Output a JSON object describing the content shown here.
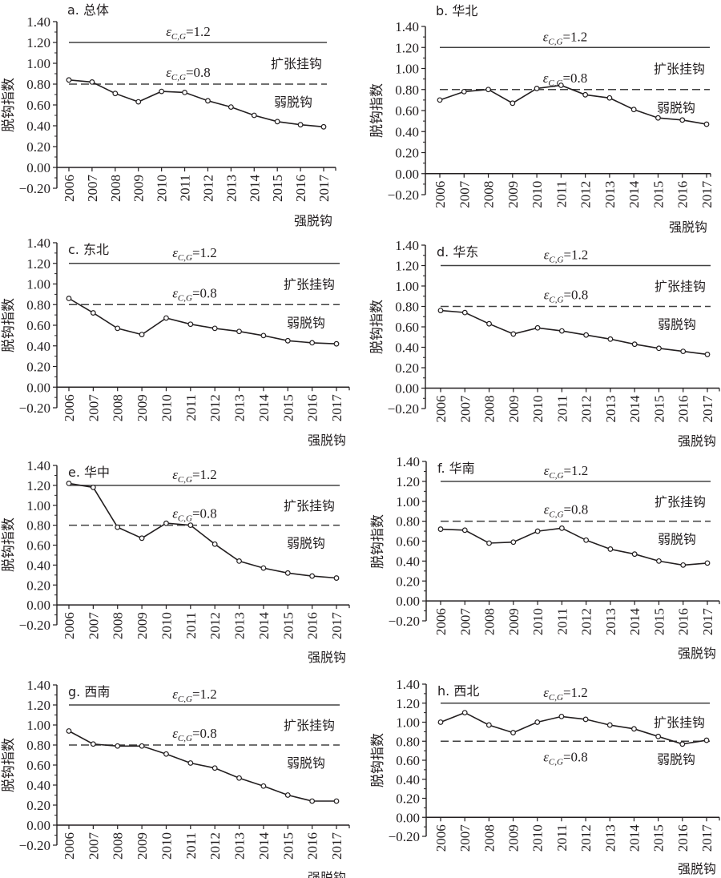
{
  "figure": {
    "y_axis_label": "脱钩指数",
    "thresholds": [
      {
        "value": 1.2,
        "label_symbol": "ε",
        "label_subscript": "C,G",
        "label_value": "=1.2",
        "style": "solid"
      },
      {
        "value": 0.8,
        "label_symbol": "ε",
        "label_subscript": "C,G",
        "label_value": "=0.8",
        "style": "dashed"
      }
    ],
    "zone_labels": {
      "expansive_coupling": "扩张挂钩",
      "weak_decoupling": "弱脱钩",
      "strong_decoupling": "强脱钩"
    },
    "colors": {
      "ink": "#231f20",
      "threshold_line": "#404040",
      "background": "#ffffff"
    }
  },
  "chart_data": [
    {
      "type": "line",
      "title": "a. 总体",
      "xlabel": "",
      "ylabel": "脱钩指数",
      "x": [
        "2006",
        "2007",
        "2008",
        "2009",
        "2010",
        "2011",
        "2012",
        "2013",
        "2014",
        "2015",
        "2016",
        "2017"
      ],
      "yticks": [
        "1.40",
        "1.20",
        "1.00",
        "0.80",
        "0.60",
        "0.40",
        "0.20",
        "0.00",
        "−0.20"
      ],
      "ylim": [
        -0.2,
        1.4
      ],
      "values": [
        0.84,
        0.82,
        0.71,
        0.63,
        0.73,
        0.72,
        0.64,
        0.58,
        0.5,
        0.44,
        0.41,
        0.39
      ],
      "eps08_label_position": "above"
    },
    {
      "type": "line",
      "title": "b. 华北",
      "xlabel": "",
      "ylabel": "脱钩指数",
      "x": [
        "2006",
        "2007",
        "2008",
        "2009",
        "2010",
        "2011",
        "2012",
        "2013",
        "2014",
        "2015",
        "2016",
        "2017"
      ],
      "yticks": [
        "1.40",
        "1.20",
        "1.00",
        "0.80",
        "0.60",
        "0.40",
        "0.20",
        "0.00",
        "−0.20"
      ],
      "ylim": [
        -0.2,
        1.4
      ],
      "values": [
        0.7,
        0.78,
        0.8,
        0.67,
        0.81,
        0.84,
        0.75,
        0.72,
        0.61,
        0.53,
        0.51,
        0.47
      ],
      "eps08_label_position": "above"
    },
    {
      "type": "line",
      "title": "c. 东北",
      "xlabel": "",
      "ylabel": "脱钩指数",
      "x": [
        "2006",
        "2007",
        "2008",
        "2009",
        "2010",
        "2011",
        "2012",
        "2013",
        "2014",
        "2015",
        "2016",
        "2017"
      ],
      "yticks": [
        "1.40",
        "1.20",
        "1.00",
        "0.80",
        "0.60",
        "0.40",
        "0.20",
        "0.00",
        "−0.20"
      ],
      "ylim": [
        -0.2,
        1.4
      ],
      "values": [
        0.86,
        0.72,
        0.57,
        0.51,
        0.67,
        0.61,
        0.57,
        0.54,
        0.5,
        0.45,
        0.43,
        0.42
      ],
      "eps08_label_position": "above"
    },
    {
      "type": "line",
      "title": "d. 华东",
      "xlabel": "",
      "ylabel": "脱钩指数",
      "x": [
        "2006",
        "2007",
        "2008",
        "2009",
        "2010",
        "2011",
        "2012",
        "2013",
        "2014",
        "2015",
        "2016",
        "2017"
      ],
      "yticks": [
        "1.40",
        "1.20",
        "1.00",
        "0.80",
        "0.60",
        "0.40",
        "0.20",
        "0.00",
        "−0.20"
      ],
      "ylim": [
        -0.2,
        1.4
      ],
      "values": [
        0.76,
        0.74,
        0.63,
        0.53,
        0.59,
        0.56,
        0.52,
        0.48,
        0.43,
        0.39,
        0.36,
        0.33
      ],
      "eps08_label_position": "above"
    },
    {
      "type": "line",
      "title": "e. 华中",
      "xlabel": "",
      "ylabel": "脱钩指数",
      "x": [
        "2006",
        "2007",
        "2008",
        "2009",
        "2010",
        "2011",
        "2012",
        "2013",
        "2014",
        "2015",
        "2016",
        "2017"
      ],
      "yticks": [
        "1.40",
        "1.20",
        "1.00",
        "0.80",
        "0.60",
        "0.40",
        "0.20",
        "0.00",
        "−0.20"
      ],
      "ylim": [
        -0.2,
        1.4
      ],
      "values": [
        1.22,
        1.18,
        0.78,
        0.67,
        0.82,
        0.8,
        0.61,
        0.44,
        0.37,
        0.32,
        0.29,
        0.27
      ],
      "eps08_label_position": "above"
    },
    {
      "type": "line",
      "title": "f. 华南",
      "xlabel": "",
      "ylabel": "脱钩指数",
      "x": [
        "2006",
        "2007",
        "2008",
        "2009",
        "2010",
        "2011",
        "2012",
        "2013",
        "2014",
        "2015",
        "2016",
        "2017"
      ],
      "yticks": [
        "1.40",
        "1.20",
        "1.00",
        "0.80",
        "0.60",
        "0.40",
        "0.20",
        "0.00",
        "−0.20"
      ],
      "ylim": [
        -0.2,
        1.4
      ],
      "values": [
        0.72,
        0.71,
        0.58,
        0.59,
        0.7,
        0.73,
        0.61,
        0.52,
        0.47,
        0.4,
        0.36,
        0.38
      ],
      "eps08_label_position": "above"
    },
    {
      "type": "line",
      "title": "g. 西南",
      "xlabel": "",
      "ylabel": "脱钩指数",
      "x": [
        "2006",
        "2007",
        "2008",
        "2009",
        "2010",
        "2011",
        "2012",
        "2013",
        "2014",
        "2015",
        "2016",
        "2017"
      ],
      "yticks": [
        "1.40",
        "1.20",
        "1.00",
        "0.80",
        "0.60",
        "0.40",
        "0.20",
        "0.00",
        "−0.20"
      ],
      "ylim": [
        -0.2,
        1.4
      ],
      "values": [
        0.94,
        0.81,
        0.79,
        0.79,
        0.71,
        0.62,
        0.57,
        0.47,
        0.39,
        0.3,
        0.24,
        0.24
      ],
      "eps08_label_position": "above"
    },
    {
      "type": "line",
      "title": "h. 西北",
      "xlabel": "",
      "ylabel": "脱钩指数",
      "x": [
        "2006",
        "2007",
        "2008",
        "2009",
        "2010",
        "2011",
        "2012",
        "2013",
        "2014",
        "2015",
        "2016",
        "2017"
      ],
      "yticks": [
        "1.40",
        "1.20",
        "1.00",
        "0.80",
        "0.60",
        "0.40",
        "0.20",
        "0.00",
        "−0.20"
      ],
      "ylim": [
        -0.2,
        1.4
      ],
      "values": [
        1.0,
        1.1,
        0.97,
        0.89,
        1.0,
        1.06,
        1.03,
        0.97,
        0.93,
        0.85,
        0.77,
        0.81
      ],
      "eps08_label_position": "below"
    }
  ]
}
